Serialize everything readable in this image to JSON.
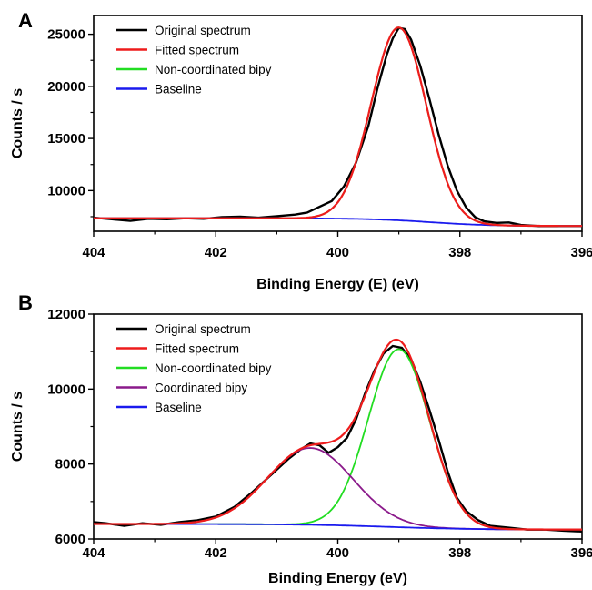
{
  "chart_data": [
    {
      "panel": "A",
      "type": "line",
      "xlabel": "Binding Energy (E) (eV)",
      "ylabel": "Counts / s",
      "xlim": [
        404,
        396
      ],
      "x_reversed": true,
      "ylim": [
        6100,
        26800
      ],
      "x_ticks": [
        404,
        402,
        400,
        398,
        396
      ],
      "y_ticks": [
        10000,
        15000,
        20000,
        25000
      ],
      "legend_position": "top-left",
      "series": [
        {
          "name": "Original spectrum",
          "color": "#000000",
          "points": [
            [
              404,
              7400
            ],
            [
              403.7,
              7250
            ],
            [
              403.4,
              7100
            ],
            [
              403.1,
              7300
            ],
            [
              402.8,
              7250
            ],
            [
              402.5,
              7350
            ],
            [
              402.2,
              7300
            ],
            [
              401.9,
              7450
            ],
            [
              401.6,
              7500
            ],
            [
              401.3,
              7400
            ],
            [
              401.0,
              7550
            ],
            [
              400.7,
              7700
            ],
            [
              400.5,
              7900
            ],
            [
              400.3,
              8450
            ],
            [
              400.1,
              9000
            ],
            [
              399.9,
              10400
            ],
            [
              399.7,
              12700
            ],
            [
              399.5,
              16200
            ],
            [
              399.35,
              19800
            ],
            [
              399.2,
              23000
            ],
            [
              399.1,
              24600
            ],
            [
              399.0,
              25600
            ],
            [
              398.9,
              25500
            ],
            [
              398.8,
              24500
            ],
            [
              398.65,
              22000
            ],
            [
              398.5,
              18800
            ],
            [
              398.35,
              15400
            ],
            [
              398.2,
              12400
            ],
            [
              398.05,
              10000
            ],
            [
              397.9,
              8400
            ],
            [
              397.75,
              7450
            ],
            [
              397.6,
              7050
            ],
            [
              397.4,
              6900
            ],
            [
              397.2,
              6950
            ],
            [
              397.0,
              6700
            ],
            [
              396.7,
              6600
            ],
            [
              396.4,
              6600
            ],
            [
              396.0,
              6600
            ]
          ]
        },
        {
          "name": "Fitted spectrum",
          "color": "#ee1c1c",
          "model": "fitted"
        },
        {
          "name": "Non-coordinated bipy",
          "color": "#22dd22",
          "model": "component"
        },
        {
          "name": "Baseline",
          "color": "#1a1aee",
          "model": "baseline"
        }
      ],
      "components": [
        {
          "name": "Non-coordinated bipy",
          "center": 399.0,
          "sigma": 0.45,
          "height": 18500
        }
      ],
      "baseline": {
        "left": 7350,
        "right": 6600,
        "step_center": 398.5,
        "step_width": 0.5
      }
    },
    {
      "panel": "B",
      "type": "line",
      "xlabel": "Binding Energy (eV)",
      "ylabel": "Counts / s",
      "xlim": [
        404,
        396
      ],
      "x_reversed": true,
      "ylim": [
        6000,
        12000
      ],
      "x_ticks": [
        404,
        402,
        400,
        398,
        396
      ],
      "y_ticks": [
        6000,
        8000,
        10000,
        12000
      ],
      "legend_position": "top-left",
      "series": [
        {
          "name": "Original spectrum",
          "color": "#000000",
          "points": [
            [
              404,
              6450
            ],
            [
              403.8,
              6420
            ],
            [
              403.5,
              6350
            ],
            [
              403.2,
              6420
            ],
            [
              402.9,
              6380
            ],
            [
              402.6,
              6450
            ],
            [
              402.3,
              6500
            ],
            [
              402.0,
              6600
            ],
            [
              401.7,
              6850
            ],
            [
              401.4,
              7250
            ],
            [
              401.1,
              7700
            ],
            [
              400.8,
              8150
            ],
            [
              400.6,
              8400
            ],
            [
              400.45,
              8550
            ],
            [
              400.3,
              8500
            ],
            [
              400.15,
              8300
            ],
            [
              400.0,
              8450
            ],
            [
              399.85,
              8700
            ],
            [
              399.7,
              9200
            ],
            [
              399.55,
              9900
            ],
            [
              399.4,
              10500
            ],
            [
              399.25,
              10950
            ],
            [
              399.1,
              11150
            ],
            [
              398.95,
              11100
            ],
            [
              398.8,
              10800
            ],
            [
              398.65,
              10200
            ],
            [
              398.5,
              9450
            ],
            [
              398.35,
              8650
            ],
            [
              398.2,
              7800
            ],
            [
              398.05,
              7100
            ],
            [
              397.9,
              6750
            ],
            [
              397.7,
              6500
            ],
            [
              397.5,
              6350
            ],
            [
              397.2,
              6300
            ],
            [
              396.9,
              6250
            ],
            [
              396.6,
              6250
            ],
            [
              396.3,
              6220
            ],
            [
              396.0,
              6200
            ]
          ]
        },
        {
          "name": "Fitted spectrum",
          "color": "#ee1c1c",
          "model": "fitted"
        },
        {
          "name": "Non-coordinated bipy",
          "color": "#22dd22",
          "model": "component"
        },
        {
          "name": "Coordinated bipy",
          "color": "#8b1a8b",
          "model": "component"
        },
        {
          "name": "Baseline",
          "color": "#1a1aee",
          "model": "baseline"
        }
      ],
      "components": [
        {
          "name": "Non-coordinated bipy",
          "center": 399.0,
          "sigma": 0.5,
          "height": 4750
        },
        {
          "name": "Coordinated bipy",
          "center": 400.45,
          "sigma": 0.7,
          "height": 2050
        }
      ],
      "baseline": {
        "left": 6400,
        "right": 6250,
        "step_center": 399.2,
        "step_width": 0.7
      }
    }
  ]
}
